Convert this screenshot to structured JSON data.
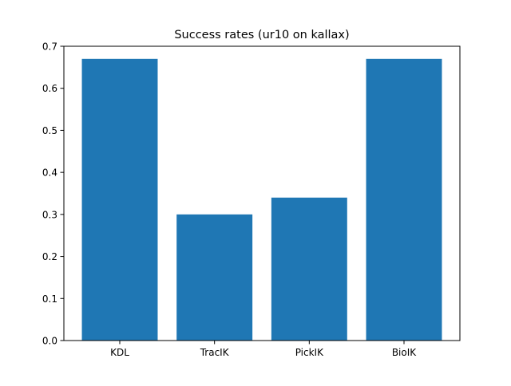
{
  "chart_data": {
    "type": "bar",
    "title": "Success rates (ur10 on kallax)",
    "xlabel": "",
    "ylabel": "",
    "categories": [
      "KDL",
      "TracIK",
      "PickIK",
      "BioIK"
    ],
    "values": [
      0.67,
      0.3,
      0.34,
      0.67
    ],
    "ylim": [
      0,
      0.7
    ],
    "yticks": [
      0.0,
      0.1,
      0.2,
      0.3,
      0.4,
      0.5,
      0.6,
      0.7
    ],
    "ytick_labels": [
      "0.0",
      "0.1",
      "0.2",
      "0.3",
      "0.4",
      "0.5",
      "0.6",
      "0.7"
    ],
    "grid": false,
    "bar_color": "#1f77b4"
  }
}
